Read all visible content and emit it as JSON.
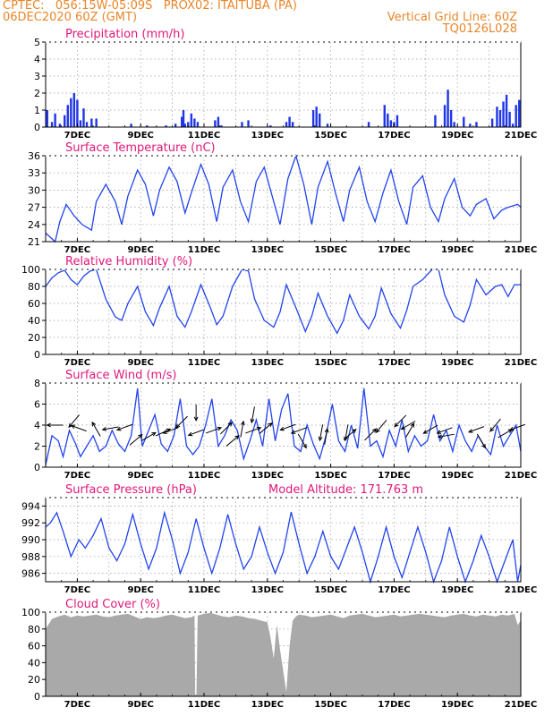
{
  "header": {
    "line1_left": "CPTEC:   056:15W-05:09S   PROX02: ITAITUBA (PA)",
    "line2_left": "06DEC2020 60Z (GMT)",
    "line2_right": "Vertical Grid Line: 60Z",
    "line3_right": "TQ0126L028"
  },
  "colors": {
    "header": "#e8862a",
    "panel_title": "#e0187a",
    "line": "#2244ee",
    "bar": "#1f35e8",
    "cloud": "#a9a9a9",
    "axis": "#000000",
    "grid": "#999999"
  },
  "chart_data": [
    {
      "type": "bar",
      "title": "Precipitation (mm/h)",
      "ylim": [
        0,
        5
      ],
      "yticks": [
        "0",
        "1",
        "2",
        "3",
        "4",
        "5"
      ],
      "xticks": [
        "7DEC",
        "9DEC",
        "11DEC",
        "13DEC",
        "15DEC",
        "17DEC",
        "19DEC",
        "21DEC"
      ],
      "grid": true,
      "x": [
        0.05,
        0.2,
        0.3,
        0.45,
        0.6,
        0.7,
        0.8,
        0.9,
        1.0,
        1.1,
        1.2,
        1.3,
        1.45,
        1.6,
        2.7,
        3.2,
        3.8,
        4.1,
        4.3,
        4.35,
        4.4,
        4.5,
        4.6,
        4.7,
        4.8,
        5.35,
        5.45,
        5.55,
        6.2,
        6.4,
        7.1,
        7.6,
        7.7,
        7.8,
        8.45,
        8.55,
        8.65,
        8.9,
        10.2,
        10.7,
        10.8,
        10.9,
        11.0,
        11.1,
        12.3,
        12.6,
        12.7,
        12.8,
        12.9,
        13.2,
        13.4,
        13.6,
        14.1,
        14.25,
        14.35,
        14.45,
        14.55,
        14.65,
        14.75,
        14.85,
        14.95
      ],
      "values": [
        1.0,
        0.3,
        0.8,
        0.2,
        0.7,
        1.3,
        1.7,
        2.0,
        1.6,
        0.4,
        1.1,
        0.3,
        0.5,
        0.5,
        0.2,
        0.1,
        0.1,
        0.2,
        0.6,
        1.0,
        0.2,
        0.3,
        0.8,
        0.5,
        0.3,
        0.4,
        0.6,
        0.1,
        0.3,
        0.4,
        0.1,
        0.3,
        0.6,
        0.3,
        1.0,
        1.2,
        0.8,
        0.2,
        0.3,
        1.3,
        0.8,
        0.4,
        0.3,
        0.7,
        0.7,
        1.3,
        2.2,
        1.0,
        0.3,
        0.6,
        0.2,
        0.3,
        0.5,
        1.2,
        1.0,
        1.5,
        1.9,
        0.9,
        0.2,
        1.3,
        1.6
      ]
    },
    {
      "type": "line",
      "title": "Surface Temperature (nC)",
      "ylim": [
        21,
        36
      ],
      "yticks": [
        "21",
        "24",
        "27",
        "30",
        "33",
        "36"
      ],
      "xticks": [
        "7DEC",
        "9DEC",
        "11DEC",
        "13DEC",
        "15DEC",
        "17DEC",
        "19DEC",
        "21DEC"
      ],
      "grid": true,
      "series": [
        {
          "x": [
            0,
            0.3,
            0.45,
            0.65,
            0.9,
            1.15,
            1.45,
            1.6,
            1.9,
            2.2,
            2.4,
            2.6,
            2.9,
            3.15,
            3.4,
            3.6,
            3.9,
            4.15,
            4.4,
            4.6,
            4.9,
            5.15,
            5.4,
            5.6,
            5.9,
            6.15,
            6.4,
            6.65,
            6.9,
            7.15,
            7.4,
            7.65,
            7.9,
            8.15,
            8.4,
            8.6,
            8.9,
            9.15,
            9.4,
            9.6,
            9.9,
            10.15,
            10.4,
            10.65,
            10.9,
            11.15,
            11.4,
            11.6,
            11.9,
            12.15,
            12.4,
            12.6,
            12.9,
            13.15,
            13.4,
            13.6,
            13.9,
            14.15,
            14.4,
            14.6,
            14.9,
            15.0
          ],
          "values": [
            22.5,
            21.0,
            24.5,
            27.5,
            25.5,
            24.0,
            23.0,
            28.0,
            31.0,
            28.0,
            24.0,
            29.0,
            33.5,
            31.0,
            25.5,
            30.0,
            34.0,
            31.5,
            26.0,
            29.5,
            34.5,
            31.0,
            24.5,
            30.5,
            33.5,
            28.0,
            24.5,
            31.5,
            34.0,
            29.0,
            24.0,
            32.0,
            36.0,
            31.0,
            24.0,
            30.5,
            35.0,
            29.5,
            24.5,
            30.0,
            34.0,
            28.0,
            24.5,
            29.5,
            33.5,
            28.0,
            24.0,
            30.5,
            32.5,
            27.0,
            24.5,
            28.5,
            32.0,
            27.0,
            25.5,
            27.5,
            28.5,
            25.0,
            26.5,
            27.0,
            27.5,
            27.0
          ]
        }
      ]
    },
    {
      "type": "line",
      "title": "Relative Humidity (%)",
      "ylim": [
        0,
        100
      ],
      "yticks": [
        "0",
        "20",
        "40",
        "60",
        "80",
        "100"
      ],
      "xticks": [
        "7DEC",
        "9DEC",
        "11DEC",
        "13DEC",
        "15DEC",
        "17DEC",
        "19DEC",
        "21DEC"
      ],
      "grid": true,
      "series": [
        {
          "x": [
            0,
            0.2,
            0.4,
            0.6,
            0.8,
            1.0,
            1.2,
            1.4,
            1.6,
            1.9,
            2.2,
            2.4,
            2.6,
            2.9,
            3.15,
            3.4,
            3.6,
            3.9,
            4.15,
            4.4,
            4.6,
            4.9,
            5.2,
            5.4,
            5.6,
            5.9,
            6.2,
            6.4,
            6.6,
            6.9,
            7.2,
            7.4,
            7.6,
            7.9,
            8.2,
            8.4,
            8.6,
            8.9,
            9.2,
            9.4,
            9.6,
            9.9,
            10.2,
            10.4,
            10.6,
            10.9,
            11.2,
            11.4,
            11.6,
            11.9,
            12.2,
            12.4,
            12.6,
            12.9,
            13.2,
            13.4,
            13.6,
            13.9,
            14.2,
            14.4,
            14.6,
            14.8,
            15.0
          ],
          "values": [
            80,
            90,
            96,
            99,
            88,
            82,
            92,
            98,
            100,
            65,
            44,
            40,
            60,
            80,
            50,
            34,
            55,
            80,
            45,
            32,
            50,
            82,
            55,
            35,
            45,
            80,
            100,
            98,
            65,
            40,
            32,
            50,
            82,
            55,
            27,
            45,
            72,
            45,
            25,
            40,
            70,
            45,
            30,
            45,
            78,
            48,
            31,
            52,
            80,
            88,
            100,
            100,
            70,
            45,
            38,
            58,
            88,
            70,
            80,
            82,
            68,
            82,
            82
          ]
        }
      ]
    },
    {
      "type": "line",
      "title": "Surface Wind (m/s)",
      "ylim": [
        0,
        8
      ],
      "yticks": [
        "0",
        "2",
        "4",
        "6",
        "8"
      ],
      "xticks": [
        "7DEC",
        "9DEC",
        "11DEC",
        "13DEC",
        "15DEC",
        "17DEC",
        "19DEC",
        "21DEC"
      ],
      "grid": true,
      "series": [
        {
          "x": [
            0,
            0.2,
            0.4,
            0.55,
            0.75,
            0.95,
            1.1,
            1.3,
            1.5,
            1.7,
            1.9,
            2.1,
            2.3,
            2.5,
            2.7,
            2.9,
            3.05,
            3.25,
            3.45,
            3.65,
            3.85,
            4.05,
            4.25,
            4.45,
            4.65,
            4.85,
            5.05,
            5.25,
            5.45,
            5.65,
            5.85,
            6.05,
            6.25,
            6.45,
            6.65,
            6.85,
            7.05,
            7.25,
            7.45,
            7.65,
            7.85,
            8.05,
            8.25,
            8.45,
            8.65,
            8.85,
            9.05,
            9.25,
            9.45,
            9.65,
            9.85,
            10.05,
            10.25,
            10.45,
            10.65,
            10.85,
            11.05,
            11.25,
            11.45,
            11.65,
            11.85,
            12.05,
            12.25,
            12.45,
            12.65,
            12.85,
            13.05,
            13.25,
            13.45,
            13.65,
            13.85,
            14.05,
            14.25,
            14.45,
            14.65,
            14.85,
            15.0
          ],
          "values": [
            0.2,
            3.0,
            2.5,
            1.0,
            3.5,
            2.2,
            1.0,
            2.0,
            3.0,
            1.5,
            2.0,
            3.5,
            2.2,
            1.5,
            3.0,
            7.5,
            2.0,
            3.5,
            5.0,
            2.2,
            1.5,
            3.0,
            6.5,
            2.0,
            1.2,
            2.0,
            4.0,
            6.5,
            2.0,
            3.0,
            4.5,
            3.5,
            0.8,
            2.5,
            4.5,
            2.0,
            6.5,
            2.5,
            5.5,
            7.0,
            2.0,
            1.5,
            4.0,
            2.2,
            0.8,
            3.0,
            6.0,
            2.5,
            1.5,
            4.0,
            1.8,
            7.5,
            2.0,
            2.5,
            1.0,
            3.5,
            2.0,
            4.5,
            1.5,
            3.0,
            2.0,
            2.5,
            5.0,
            2.5,
            3.5,
            1.5,
            4.0,
            2.5,
            1.5,
            3.0,
            2.0,
            1.2,
            4.0,
            2.0,
            3.0,
            4.0,
            1.5
          ]
        }
      ],
      "vectors": [
        [
          0.3,
          4.0,
          180
        ],
        [
          0.9,
          4.4,
          230
        ],
        [
          1.05,
          3.7,
          160
        ],
        [
          1.6,
          3.6,
          120
        ],
        [
          2.05,
          3.7,
          190
        ],
        [
          2.5,
          3.8,
          200
        ],
        [
          2.85,
          2.6,
          40
        ],
        [
          3.25,
          2.9,
          30
        ],
        [
          3.7,
          3.3,
          25
        ],
        [
          3.95,
          3.5,
          200
        ],
        [
          4.3,
          4.3,
          225
        ],
        [
          4.75,
          3.3,
          200
        ],
        [
          4.75,
          5.2,
          270
        ],
        [
          5.3,
          3.5,
          20
        ],
        [
          5.7,
          3.7,
          45
        ],
        [
          5.9,
          2.5,
          40
        ],
        [
          6.2,
          3.6,
          80
        ],
        [
          6.55,
          3.5,
          20
        ],
        [
          6.55,
          5.0,
          260
        ],
        [
          6.95,
          3.7,
          40
        ],
        [
          7.65,
          3.8,
          200
        ],
        [
          8.0,
          3.5,
          200
        ],
        [
          8.1,
          2.5,
          300
        ],
        [
          8.7,
          3.3,
          260
        ],
        [
          8.85,
          2.9,
          80
        ],
        [
          9.5,
          3.3,
          260
        ],
        [
          9.6,
          3.1,
          40
        ],
        [
          10.25,
          3.1,
          45
        ],
        [
          10.6,
          3.9,
          230
        ],
        [
          11.2,
          4.4,
          225
        ],
        [
          11.45,
          4.0,
          210
        ],
        [
          11.5,
          3.5,
          60
        ],
        [
          12.15,
          3.6,
          210
        ],
        [
          12.6,
          3.5,
          200
        ],
        [
          12.65,
          3.0,
          190
        ],
        [
          13.6,
          3.6,
          200
        ],
        [
          13.75,
          2.5,
          300
        ],
        [
          14.2,
          4.0,
          230
        ],
        [
          14.5,
          3.2,
          30
        ],
        [
          14.9,
          3.8,
          200
        ]
      ]
    },
    {
      "type": "line",
      "title": "Surface Pressure (hPa)",
      "annotation": "Model Altitude: 171.763 m",
      "ylim": [
        985,
        995
      ],
      "yticks": [
        "986",
        "988",
        "990",
        "992",
        "994"
      ],
      "xticks": [
        "7DEC",
        "9DEC",
        "11DEC",
        "13DEC",
        "15DEC",
        "17DEC",
        "19DEC",
        "21DEC"
      ],
      "grid": true,
      "series": [
        {
          "x": [
            0,
            0.15,
            0.35,
            0.55,
            0.8,
            1.05,
            1.25,
            1.5,
            1.75,
            2.0,
            2.25,
            2.5,
            2.75,
            3.0,
            3.25,
            3.5,
            3.75,
            4.0,
            4.25,
            4.5,
            4.75,
            5.0,
            5.25,
            5.5,
            5.75,
            6.0,
            6.25,
            6.5,
            6.75,
            7.0,
            7.25,
            7.5,
            7.75,
            8.0,
            8.25,
            8.5,
            8.75,
            9.0,
            9.25,
            9.5,
            9.75,
            10.0,
            10.25,
            10.5,
            10.75,
            11.0,
            11.25,
            11.5,
            11.75,
            12.0,
            12.25,
            12.5,
            12.75,
            13.0,
            13.25,
            13.5,
            13.75,
            14.0,
            14.25,
            14.5,
            14.75,
            14.9,
            15.0
          ],
          "values": [
            991.5,
            992.0,
            993.2,
            991.0,
            988.0,
            990.0,
            989.0,
            990.5,
            992.5,
            989.0,
            987.5,
            989.5,
            993.0,
            989.5,
            986.5,
            989.0,
            993.2,
            990.0,
            986.0,
            988.5,
            992.5,
            989.0,
            986.0,
            989.0,
            993.0,
            989.5,
            986.5,
            988.0,
            991.5,
            988.5,
            986.0,
            988.5,
            993.3,
            989.5,
            986.0,
            988.0,
            991.0,
            988.0,
            986.5,
            989.0,
            991.5,
            988.5,
            985.0,
            988.0,
            991.5,
            988.0,
            985.5,
            988.5,
            991.5,
            988.5,
            985.0,
            987.5,
            991.5,
            988.0,
            985.0,
            987.5,
            990.5,
            988.0,
            985.0,
            987.5,
            990.0,
            985.0,
            987.0
          ]
        }
      ]
    },
    {
      "type": "area",
      "title": "Cloud Cover (%)",
      "ylim": [
        0,
        100
      ],
      "yticks": [
        "0",
        "20",
        "40",
        "60",
        "80",
        "100"
      ],
      "xticks": [
        "7DEC",
        "9DEC",
        "11DEC",
        "13DEC",
        "15DEC",
        "17DEC",
        "19DEC",
        "21DEC"
      ],
      "grid": true,
      "series": [
        {
          "x": [
            0,
            0.2,
            0.4,
            0.6,
            0.8,
            1.0,
            1.2,
            1.4,
            1.6,
            1.8,
            2.0,
            2.2,
            2.4,
            2.6,
            2.8,
            3.0,
            3.2,
            3.4,
            3.6,
            3.8,
            4.0,
            4.2,
            4.4,
            4.6,
            4.7,
            4.72,
            4.76,
            4.8,
            5.0,
            5.2,
            5.4,
            5.6,
            5.8,
            6.0,
            6.2,
            6.4,
            6.6,
            6.8,
            7.0,
            7.1,
            7.2,
            7.3,
            7.4,
            7.5,
            7.6,
            7.7,
            7.8,
            7.9,
            8.0,
            8.2,
            8.4,
            8.6,
            8.8,
            9.0,
            9.2,
            9.4,
            9.6,
            9.8,
            10.0,
            10.2,
            10.4,
            10.6,
            10.8,
            11.0,
            11.2,
            11.4,
            11.6,
            11.8,
            12.0,
            12.2,
            12.4,
            12.6,
            12.8,
            13.0,
            13.2,
            13.4,
            13.6,
            13.8,
            14.0,
            14.2,
            14.4,
            14.6,
            14.8,
            14.9,
            15.0
          ],
          "values": [
            80,
            92,
            95,
            97,
            94,
            96,
            95,
            96,
            97,
            95,
            94,
            96,
            97,
            98,
            95,
            92,
            94,
            93,
            94,
            96,
            97,
            95,
            93,
            94,
            96,
            2,
            2,
            96,
            98,
            99,
            97,
            95,
            94,
            96,
            95,
            93,
            92,
            90,
            88,
            70,
            45,
            85,
            55,
            30,
            5,
            60,
            90,
            95,
            97,
            96,
            94,
            95,
            96,
            97,
            95,
            93,
            96,
            97,
            98,
            96,
            94,
            95,
            96,
            97,
            95,
            96,
            97,
            98,
            97,
            96,
            95,
            94,
            96,
            97,
            98,
            96,
            95,
            97,
            96,
            95,
            97,
            96,
            98,
            85,
            90
          ]
        }
      ]
    }
  ]
}
